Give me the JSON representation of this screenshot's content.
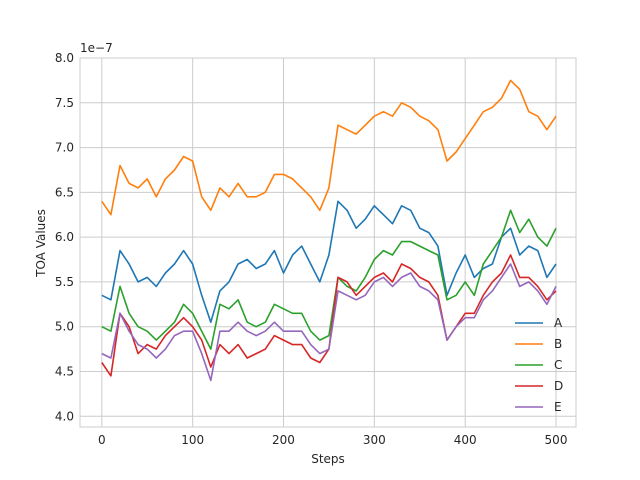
{
  "chart_data": {
    "type": "line",
    "title": "",
    "xlabel": "Steps",
    "ylabel": "TOA Values",
    "y_offset_label": "1e−7",
    "xlim": [
      -24,
      522
    ],
    "ylim": [
      3.88,
      8.0
    ],
    "xticks": [
      0,
      100,
      200,
      300,
      400,
      500
    ],
    "xtick_labels": [
      "0",
      "100",
      "200",
      "300",
      "400",
      "500"
    ],
    "yticks": [
      4.0,
      4.5,
      5.0,
      5.5,
      6.0,
      6.5,
      7.0,
      7.5,
      8.0
    ],
    "ytick_labels": [
      "4.0",
      "4.5",
      "5.0",
      "5.5",
      "6.0",
      "6.5",
      "7.0",
      "7.5",
      "8.0"
    ],
    "grid": true,
    "legend_position": "lower-right",
    "x": [
      0,
      10,
      20,
      30,
      40,
      50,
      60,
      70,
      80,
      90,
      100,
      110,
      120,
      130,
      140,
      150,
      160,
      170,
      180,
      190,
      200,
      210,
      220,
      230,
      240,
      250,
      260,
      270,
      280,
      290,
      300,
      310,
      320,
      330,
      340,
      350,
      360,
      370,
      380,
      390,
      400,
      410,
      420,
      430,
      440,
      450,
      460,
      470,
      480,
      490,
      500
    ],
    "series": [
      {
        "name": "A",
        "color": "#1f77b4",
        "values": [
          5.35,
          5.3,
          5.85,
          5.7,
          5.5,
          5.55,
          5.45,
          5.6,
          5.7,
          5.85,
          5.7,
          5.35,
          5.05,
          5.4,
          5.5,
          5.7,
          5.75,
          5.65,
          5.7,
          5.85,
          5.6,
          5.8,
          5.9,
          5.7,
          5.5,
          5.8,
          6.4,
          6.3,
          6.1,
          6.2,
          6.35,
          6.25,
          6.15,
          6.35,
          6.3,
          6.1,
          6.05,
          5.9,
          5.35,
          5.6,
          5.8,
          5.55,
          5.65,
          5.7,
          6.0,
          6.1,
          5.8,
          5.9,
          5.85,
          5.55,
          5.7
        ]
      },
      {
        "name": "B",
        "color": "#ff7f0e",
        "values": [
          6.4,
          6.25,
          6.8,
          6.6,
          6.55,
          6.65,
          6.45,
          6.65,
          6.75,
          6.9,
          6.85,
          6.45,
          6.3,
          6.55,
          6.45,
          6.6,
          6.45,
          6.45,
          6.5,
          6.7,
          6.7,
          6.65,
          6.55,
          6.45,
          6.3,
          6.55,
          7.25,
          7.2,
          7.15,
          7.25,
          7.35,
          7.4,
          7.35,
          7.5,
          7.45,
          7.35,
          7.3,
          7.2,
          6.85,
          6.95,
          7.1,
          7.25,
          7.4,
          7.45,
          7.55,
          7.75,
          7.65,
          7.4,
          7.35,
          7.2,
          7.35
        ]
      },
      {
        "name": "C",
        "color": "#2ca02c",
        "values": [
          5.0,
          4.95,
          5.45,
          5.15,
          5.0,
          4.95,
          4.85,
          4.95,
          5.05,
          5.25,
          5.15,
          4.95,
          4.75,
          5.25,
          5.2,
          5.3,
          5.05,
          5.0,
          5.05,
          5.25,
          5.2,
          5.15,
          5.15,
          4.95,
          4.85,
          4.9,
          5.55,
          5.45,
          5.4,
          5.55,
          5.75,
          5.85,
          5.8,
          5.95,
          5.95,
          5.9,
          5.85,
          5.8,
          5.3,
          5.35,
          5.5,
          5.35,
          5.7,
          5.85,
          6.0,
          6.3,
          6.05,
          6.2,
          6.0,
          5.9,
          6.1
        ]
      },
      {
        "name": "D",
        "color": "#d62728",
        "values": [
          4.6,
          4.45,
          5.15,
          5.0,
          4.7,
          4.8,
          4.75,
          4.9,
          5.0,
          5.1,
          5.0,
          4.85,
          4.55,
          4.8,
          4.7,
          4.8,
          4.65,
          4.7,
          4.75,
          4.9,
          4.85,
          4.8,
          4.8,
          4.65,
          4.6,
          4.75,
          5.55,
          5.5,
          5.35,
          5.45,
          5.55,
          5.6,
          5.5,
          5.7,
          5.65,
          5.55,
          5.5,
          5.35,
          4.85,
          5.0,
          5.15,
          5.15,
          5.35,
          5.5,
          5.6,
          5.8,
          5.55,
          5.55,
          5.45,
          5.3,
          5.4
        ]
      },
      {
        "name": "E",
        "color": "#9467bd",
        "values": [
          4.7,
          4.65,
          5.15,
          4.95,
          4.8,
          4.75,
          4.65,
          4.75,
          4.9,
          4.95,
          4.95,
          4.7,
          4.4,
          4.95,
          4.95,
          5.05,
          4.95,
          4.9,
          4.95,
          5.05,
          4.95,
          4.95,
          4.95,
          4.8,
          4.7,
          4.75,
          5.4,
          5.35,
          5.3,
          5.35,
          5.5,
          5.55,
          5.45,
          5.55,
          5.6,
          5.45,
          5.4,
          5.3,
          4.85,
          5.0,
          5.1,
          5.1,
          5.3,
          5.4,
          5.55,
          5.7,
          5.45,
          5.5,
          5.4,
          5.25,
          5.45
        ]
      }
    ]
  }
}
